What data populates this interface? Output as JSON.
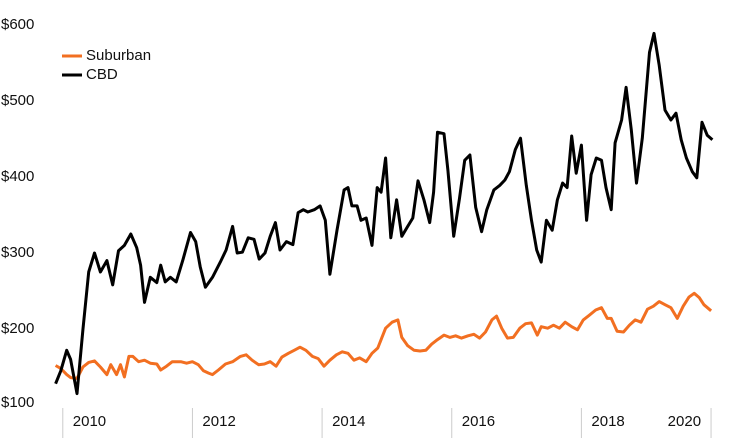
{
  "chart_data": {
    "type": "line",
    "xlim": [
      2009.88,
      2020.03
    ],
    "xticks": [
      2010,
      2012,
      2014,
      2016,
      2018,
      2020
    ],
    "ylim": [
      100,
      600
    ],
    "yticks": [
      {
        "value": 100,
        "label": "$100"
      },
      {
        "value": 200,
        "label": "$200"
      },
      {
        "value": 300,
        "label": "$300"
      },
      {
        "value": 400,
        "label": "$400"
      },
      {
        "value": 500,
        "label": "$500"
      },
      {
        "value": 600,
        "label": "$600"
      }
    ],
    "grid": false,
    "legend": "top-left",
    "series": [
      {
        "name": "Suburban",
        "color": "#f26f21",
        "x": [
          2009.89,
          2009.97,
          2010.06,
          2010.12,
          2010.22,
          2010.31,
          2010.4,
          2010.49,
          2010.58,
          2010.68,
          2010.74,
          2010.83,
          2010.89,
          2010.95,
          2011.02,
          2011.08,
          2011.17,
          2011.26,
          2011.35,
          2011.45,
          2011.51,
          2011.6,
          2011.69,
          2011.82,
          2011.91,
          2012.0,
          2012.09,
          2012.17,
          2012.25,
          2012.31,
          2012.4,
          2012.51,
          2012.62,
          2012.74,
          2012.83,
          2012.92,
          2013.02,
          2013.11,
          2013.2,
          2013.29,
          2013.38,
          2013.48,
          2013.57,
          2013.66,
          2013.75,
          2013.85,
          2013.94,
          2014.03,
          2014.12,
          2014.22,
          2014.31,
          2014.4,
          2014.49,
          2014.58,
          2014.68,
          2014.77,
          2014.86,
          2014.92,
          2014.98,
          2015.08,
          2015.17,
          2015.23,
          2015.32,
          2015.42,
          2015.51,
          2015.6,
          2015.69,
          2015.78,
          2015.88,
          2015.97,
          2016.06,
          2016.15,
          2016.25,
          2016.34,
          2016.43,
          2016.52,
          2016.62,
          2016.69,
          2016.77,
          2016.86,
          2016.95,
          2017.05,
          2017.14,
          2017.23,
          2017.32,
          2017.38,
          2017.48,
          2017.57,
          2017.66,
          2017.75,
          2017.85,
          2017.94,
          2018.03,
          2018.12,
          2018.22,
          2018.31,
          2018.4,
          2018.46,
          2018.55,
          2018.65,
          2018.74,
          2018.83,
          2018.92,
          2019.02,
          2019.11,
          2019.2,
          2019.29,
          2019.38,
          2019.48,
          2019.57,
          2019.66,
          2019.74,
          2019.82,
          2019.89,
          2020.0
        ],
        "values": [
          152,
          148,
          140,
          136,
          135,
          150,
          156,
          158,
          150,
          140,
          153,
          140,
          153,
          137,
          164,
          164,
          157,
          159,
          155,
          154,
          146,
          151,
          157,
          157,
          155,
          157,
          153,
          145,
          142,
          140,
          146,
          154,
          157,
          164,
          166,
          159,
          153,
          154,
          157,
          151,
          163,
          168,
          172,
          176,
          172,
          164,
          161,
          151,
          159,
          166,
          170,
          168,
          159,
          162,
          157,
          168,
          175,
          188,
          201,
          209,
          212,
          189,
          178,
          172,
          171,
          172,
          180,
          186,
          192,
          189,
          191,
          188,
          191,
          193,
          188,
          196,
          212,
          217,
          201,
          188,
          189,
          201,
          207,
          208,
          192,
          203,
          201,
          205,
          201,
          209,
          203,
          199,
          212,
          218,
          225,
          228,
          214,
          214,
          197,
          196,
          205,
          212,
          209,
          226,
          230,
          236,
          232,
          228,
          214,
          230,
          242,
          247,
          241,
          232,
          224
        ]
      },
      {
        "name": "CBD",
        "color": "#000000",
        "x": [
          2009.89,
          2009.97,
          2010.06,
          2010.12,
          2010.22,
          2010.31,
          2010.4,
          2010.49,
          2010.58,
          2010.68,
          2010.77,
          2010.86,
          2010.95,
          2011.05,
          2011.14,
          2011.2,
          2011.26,
          2011.35,
          2011.45,
          2011.51,
          2011.58,
          2011.66,
          2011.75,
          2011.85,
          2011.97,
          2012.05,
          2012.12,
          2012.2,
          2012.31,
          2012.43,
          2012.52,
          2012.62,
          2012.69,
          2012.77,
          2012.86,
          2012.95,
          2013.03,
          2013.12,
          2013.2,
          2013.28,
          2013.35,
          2013.45,
          2013.55,
          2013.63,
          2013.71,
          2013.78,
          2013.88,
          2013.97,
          2014.05,
          2014.12,
          2014.23,
          2014.34,
          2014.4,
          2014.46,
          2014.54,
          2014.6,
          2014.68,
          2014.77,
          2014.85,
          2014.91,
          2014.98,
          2015.06,
          2015.15,
          2015.23,
          2015.32,
          2015.4,
          2015.48,
          2015.57,
          2015.66,
          2015.72,
          2015.78,
          2015.88,
          2015.94,
          2016.03,
          2016.12,
          2016.2,
          2016.28,
          2016.37,
          2016.46,
          2016.54,
          2016.65,
          2016.74,
          2016.82,
          2016.89,
          2016.98,
          2017.06,
          2017.15,
          2017.23,
          2017.31,
          2017.38,
          2017.46,
          2017.55,
          2017.63,
          2017.71,
          2017.78,
          2017.85,
          2017.92,
          2018.0,
          2018.08,
          2018.15,
          2018.23,
          2018.31,
          2018.38,
          2018.46,
          2018.52,
          2018.62,
          2018.69,
          2018.77,
          2018.85,
          2018.94,
          2019.05,
          2019.12,
          2019.2,
          2019.29,
          2019.38,
          2019.46,
          2019.54,
          2019.62,
          2019.71,
          2019.78,
          2019.86,
          2019.94,
          2020.02
        ],
        "values": [
          128,
          145,
          172,
          160,
          115,
          199,
          275,
          300,
          275,
          290,
          258,
          303,
          310,
          325,
          307,
          284,
          235,
          268,
          261,
          284,
          262,
          268,
          262,
          290,
          327,
          315,
          282,
          255,
          268,
          288,
          304,
          335,
          300,
          301,
          320,
          318,
          292,
          300,
          322,
          340,
          304,
          315,
          311,
          353,
          357,
          354,
          357,
          362,
          343,
          272,
          330,
          383,
          386,
          362,
          362,
          343,
          346,
          310,
          386,
          380,
          425,
          320,
          370,
          322,
          335,
          346,
          395,
          370,
          340,
          380,
          459,
          457,
          409,
          322,
          372,
          422,
          429,
          360,
          328,
          357,
          383,
          389,
          396,
          407,
          436,
          451,
          389,
          343,
          304,
          288,
          343,
          330,
          370,
          392,
          386,
          454,
          405,
          442,
          343,
          403,
          425,
          422,
          386,
          357,
          445,
          475,
          518,
          462,
          392,
          451,
          564,
          589,
          547,
          488,
          475,
          484,
          449,
          425,
          407,
          399,
          472,
          455,
          449
        ]
      }
    ]
  }
}
